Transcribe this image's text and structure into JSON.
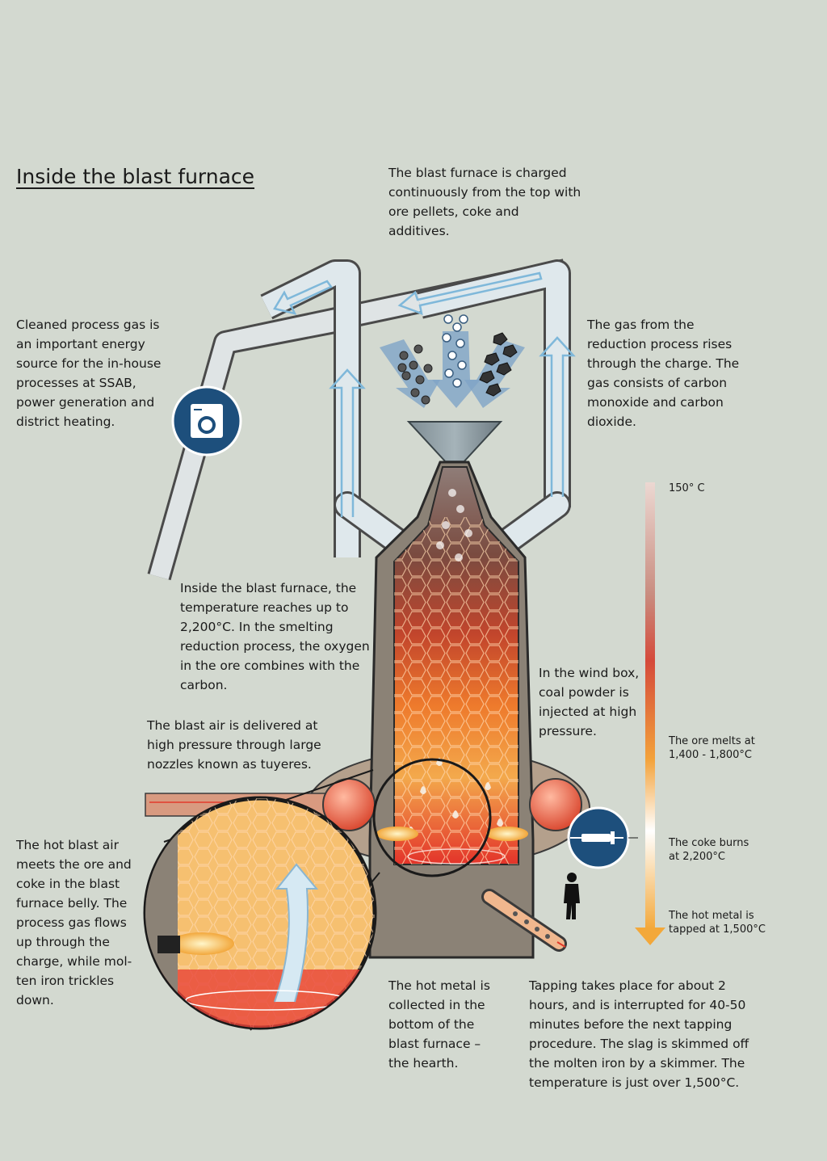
{
  "title": "Inside the blast furnace",
  "notes": {
    "charging": "The blast furnace is charged continuously from the top with ore pellets, coke and additives.",
    "cleaned_gas": "Cleaned process gas is an important energy source for the in-house processes at SSAB, power generation and district heating.",
    "gas_rises": "The gas from the reduction process rises through the charge. The gas consists of carbon monoxide and carbon dioxide.",
    "temperature": "Inside the blast furnace, the temperature reaches up to 2,200°C. In the smelting reduction process, the oxygen in the ore combines with the carbon.",
    "wind_box": "In the wind box, coal powder is injected at high pressure.",
    "blast_air": "The blast air is delivered at high pressure through large nozzles known as tuyeres.",
    "hot_blast": "The hot blast air meets the ore and coke in the blast furnace belly. The process gas flows up through the charge, while mol-ten iron trickles down.",
    "hearth": "The hot metal is collected in the bottom of the blast furnace – the hearth.",
    "tapping": "Tapping takes place for about 2 hours, and is interrupted for 40-50 minutes before the next tapping procedure. The slag is skimmed off the molten iron by a skimmer. The temperature is just over 1,500°C."
  },
  "temperature_scale": {
    "top": "150° C",
    "ore_melts": "The ore melts at 1,400 - 1,800°C",
    "coke_burns": "The coke burns at 2,200°C",
    "hot_metal": "The hot metal is tapped at 1,500°C"
  },
  "icons": {
    "gas_use": "washing-machine-icon",
    "coal_injection": "injection-syringe-icon",
    "worker": "person-silhouette-icon"
  },
  "colors": {
    "background": "#d3d9d0",
    "furnace_shell": "#8b8276",
    "icon_circle": "#1d4f7c",
    "gas_flow": "#bfe0f2",
    "hot_zone": "#e4411f",
    "temp_arrow": "#f2a33a"
  }
}
